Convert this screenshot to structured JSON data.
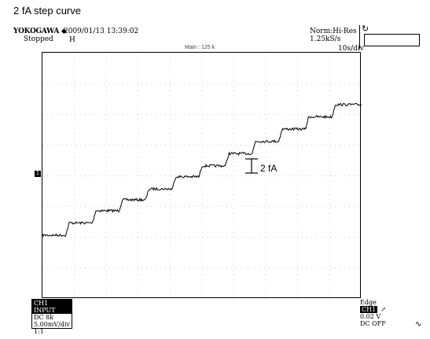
{
  "page": {
    "title": "2 fA step curve"
  },
  "header": {
    "brand": "YOKOGAWA ◆",
    "timestamp": "2009/01/13 13:39:02",
    "run_state": "Stopped",
    "trigger_marker": "H",
    "acq_mode": "Norm:Hi-Res",
    "sample_rate": "1.25kS/s",
    "timebase": "10s/div",
    "zoom_label": "Main : 125 k",
    "rotate_icon": "rotate-icon"
  },
  "plot": {
    "annotation": "2 fA",
    "ch_marker": "1",
    "grid": {
      "x_divisions": 10,
      "y_divisions": 8
    },
    "step_levels": [
      0.0,
      0.9,
      1.8,
      2.6,
      3.4,
      4.3,
      5.1,
      6.0,
      6.9,
      7.8,
      8.7,
      9.6
    ],
    "trace_color": "#000000"
  },
  "channel": {
    "header": "CH1 INPUT",
    "coupling": "DC 8k",
    "scale": "5.00mV/div",
    "probe": "1:1"
  },
  "trigger": {
    "type": "Edge",
    "source": "CH1",
    "slope": "↗",
    "level": "0.02 V",
    "filter": "DC OFF",
    "coupling_icon": "∿"
  }
}
